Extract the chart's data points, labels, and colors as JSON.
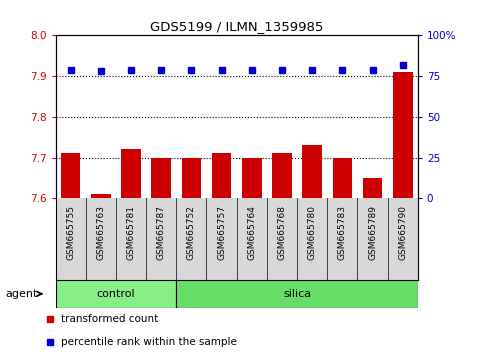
{
  "title": "GDS5199 / ILMN_1359985",
  "samples": [
    "GSM665755",
    "GSM665763",
    "GSM665781",
    "GSM665787",
    "GSM665752",
    "GSM665757",
    "GSM665764",
    "GSM665768",
    "GSM665780",
    "GSM665783",
    "GSM665789",
    "GSM665790"
  ],
  "red_values": [
    7.71,
    7.61,
    7.72,
    7.7,
    7.7,
    7.71,
    7.7,
    7.71,
    7.73,
    7.7,
    7.65,
    7.91
  ],
  "blue_values": [
    79,
    78,
    79,
    79,
    79,
    79,
    79,
    79,
    79,
    79,
    79,
    82
  ],
  "control_count": 4,
  "silica_count": 8,
  "ylim_left": [
    7.6,
    8.0
  ],
  "ylim_right": [
    0,
    100
  ],
  "yticks_left": [
    7.6,
    7.7,
    7.8,
    7.9,
    8.0
  ],
  "yticks_right": [
    0,
    25,
    50,
    75,
    100
  ],
  "hlines": [
    7.7,
    7.8,
    7.9
  ],
  "bar_color": "#cc0000",
  "dot_color": "#0000cc",
  "control_color": "#88ee88",
  "silica_color": "#66dd66",
  "ticklabel_bg": "#d8d8d8",
  "agent_label": "agent",
  "control_label": "control",
  "silica_label": "silica",
  "legend_red": "transformed count",
  "legend_blue": "percentile rank within the sample",
  "plot_bg_color": "#ffffff"
}
